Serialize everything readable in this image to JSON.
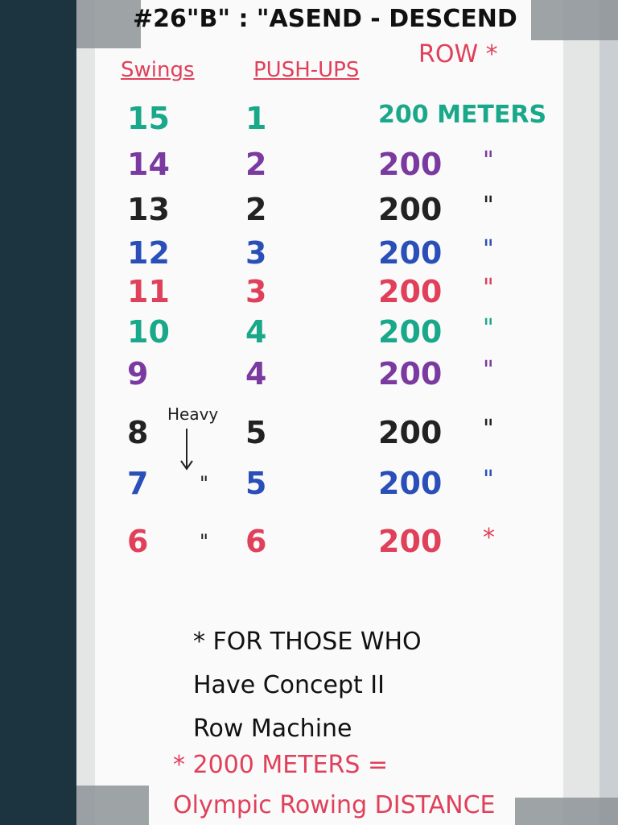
{
  "title": "#26\"B\" : \"ASEND - DESCEND",
  "headers": {
    "swings": "Swings",
    "pushups": "PUSH-UPS",
    "row": "ROW *"
  },
  "rows": [
    {
      "swings": 15,
      "pushups": 1,
      "row": "200 METERS",
      "color": "#1aa88a"
    },
    {
      "swings": 14,
      "pushups": 2,
      "row": "200",
      "mark": "\"",
      "color": "#7a3aa0"
    },
    {
      "swings": 13,
      "pushups": 2,
      "row": "200",
      "mark": "\"",
      "color": "#222222"
    },
    {
      "swings": 12,
      "pushups": 3,
      "row": "200",
      "mark": "\"",
      "color": "#2a4fb8"
    },
    {
      "swings": 11,
      "pushups": 3,
      "row": "200",
      "mark": "\"",
      "color": "#e0405a"
    },
    {
      "swings": 10,
      "pushups": 4,
      "row": "200",
      "mark": "\"",
      "color": "#1aa88a"
    },
    {
      "swings": 9,
      "pushups": 4,
      "row": "200",
      "mark": "\"",
      "color": "#7a3aa0"
    },
    {
      "swings": 8,
      "pushups": 5,
      "row": "200",
      "mark": "\"",
      "color": "#222222"
    },
    {
      "swings": 7,
      "pushups": 5,
      "row": "200",
      "mark": "\"",
      "swing_mark": "\"",
      "color": "#2a4fb8"
    },
    {
      "swings": 6,
      "pushups": 6,
      "row": "200",
      "mark": "*",
      "swing_mark": "\"",
      "color": "#e0405a"
    }
  ],
  "heavy_note": "Heavy",
  "notes": [
    "* FOR THOSE WHO",
    "Have Concept II",
    "Row Machine"
  ],
  "footer": [
    "* 2000 METERS =",
    "Olympic Rowing DISTANCE"
  ]
}
